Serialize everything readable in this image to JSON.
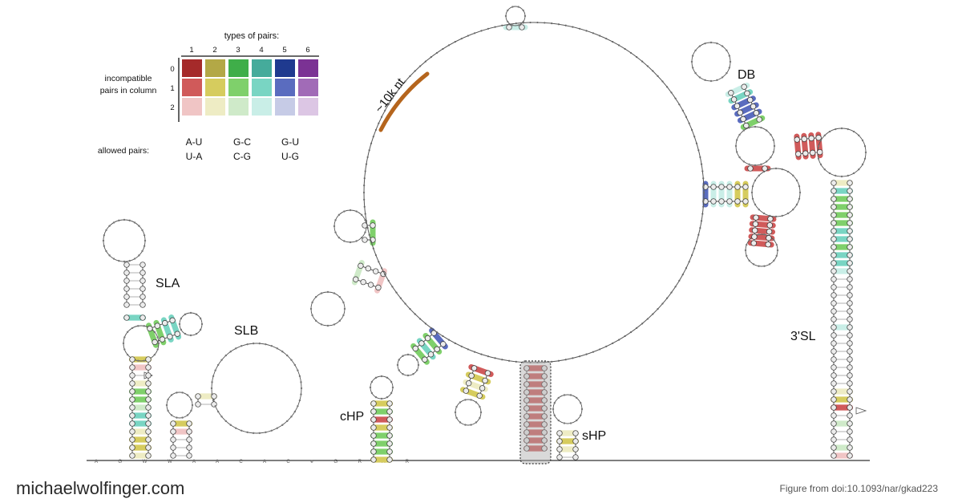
{
  "legend": {
    "title": "types of pairs:",
    "columns": [
      "1",
      "2",
      "3",
      "4",
      "5",
      "6"
    ],
    "rows": [
      "0",
      "1",
      "2"
    ],
    "row_label_line1": "incompatible",
    "row_label_line2": "pairs in column",
    "allowed_label": "allowed pairs:",
    "allowed": [
      {
        "top": "A-U",
        "bottom": "U-A"
      },
      {
        "top": "G-C",
        "bottom": "C-G"
      },
      {
        "top": "G-U",
        "bottom": "U-G"
      }
    ],
    "colors": [
      [
        "#a52a2a",
        "#b3a846",
        "#3fae49",
        "#45ab9b",
        "#1f3a8f",
        "#7b3294"
      ],
      [
        "#d05a5a",
        "#d6cc5e",
        "#7fd06b",
        "#79d5c3",
        "#5a6cbf",
        "#a16bb7"
      ],
      [
        "#f0c5c5",
        "#eeecc4",
        "#cfeac9",
        "#c9eee7",
        "#c6cbe6",
        "#dcc6e4"
      ]
    ]
  },
  "labels": {
    "sla": "SLA",
    "slb": "SLB",
    "chp": "cHP",
    "shp": "sHP",
    "db": "DB",
    "three_sl": "3'SL",
    "orf": "~10k nt"
  },
  "sequence_5prime": "A G W W A A C A C e G R A R",
  "footer": {
    "site": "michaelwolfinger.com",
    "credit": "Figure from doi:10.1093/nar/gkad223"
  }
}
